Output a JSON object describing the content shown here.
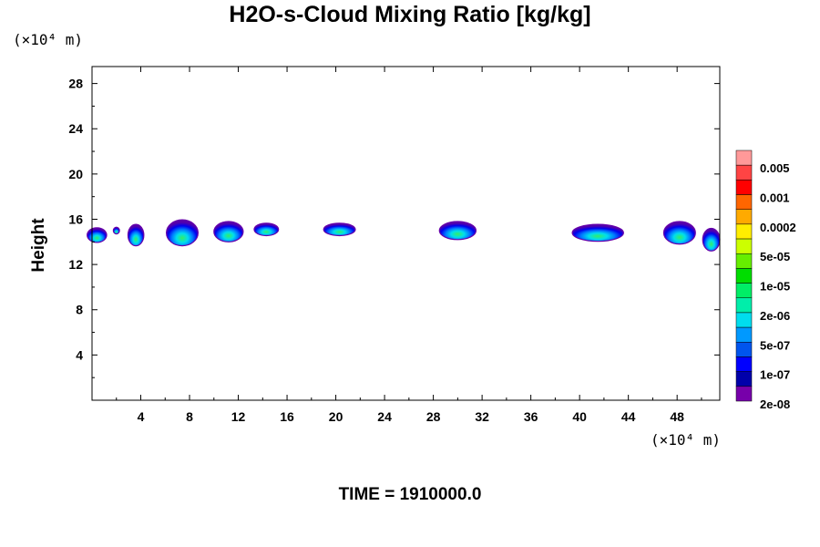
{
  "chart_data": {
    "type": "contour",
    "title": "H2O-s-Cloud Mixing Ratio [kg/kg]",
    "ylabel": "Height",
    "xlabel": "",
    "x_unit": "(×10⁴ m)",
    "y_unit": "(×10⁴ m)",
    "xlim": [
      0,
      51.5
    ],
    "ylim": [
      0,
      29.5
    ],
    "x_ticks": [
      4,
      8,
      12,
      16,
      20,
      24,
      28,
      32,
      36,
      40,
      44,
      48
    ],
    "y_ticks": [
      4,
      8,
      12,
      16,
      20,
      24,
      28
    ],
    "footer": "TIME = 1910000.0",
    "colorbar": {
      "labels": [
        "0.005",
        "0.001",
        "0.0002",
        "5e-05",
        "1e-05",
        "2e-06",
        "5e-07",
        "1e-07",
        "2e-08"
      ],
      "colors": [
        "#ff9999",
        "#ff4444",
        "#ff0000",
        "#ff6600",
        "#ffaa00",
        "#ffee00",
        "#ccff00",
        "#66ee00",
        "#00dd00",
        "#00ee66",
        "#00eeaa",
        "#00ddee",
        "#0099ff",
        "#0055ee",
        "#0000ff",
        "#0000aa",
        "#7700aa"
      ]
    },
    "clouds": [
      {
        "x": 0.4,
        "y": 14.6,
        "w": 1.6,
        "h": 1.3
      },
      {
        "x": 2.0,
        "y": 15.0,
        "w": 0.5,
        "h": 0.6
      },
      {
        "x": 3.6,
        "y": 14.6,
        "w": 1.3,
        "h": 1.9
      },
      {
        "x": 7.4,
        "y": 14.8,
        "w": 2.6,
        "h": 2.3
      },
      {
        "x": 11.2,
        "y": 14.9,
        "w": 2.4,
        "h": 1.8
      },
      {
        "x": 14.3,
        "y": 15.1,
        "w": 2.0,
        "h": 1.1
      },
      {
        "x": 20.3,
        "y": 15.1,
        "w": 2.6,
        "h": 1.1
      },
      {
        "x": 30.0,
        "y": 15.0,
        "w": 3.0,
        "h": 1.6
      },
      {
        "x": 41.5,
        "y": 14.8,
        "w": 4.2,
        "h": 1.5
      },
      {
        "x": 48.2,
        "y": 14.8,
        "w": 2.6,
        "h": 2.0
      },
      {
        "x": 50.8,
        "y": 14.2,
        "w": 1.4,
        "h": 2.0
      }
    ]
  }
}
